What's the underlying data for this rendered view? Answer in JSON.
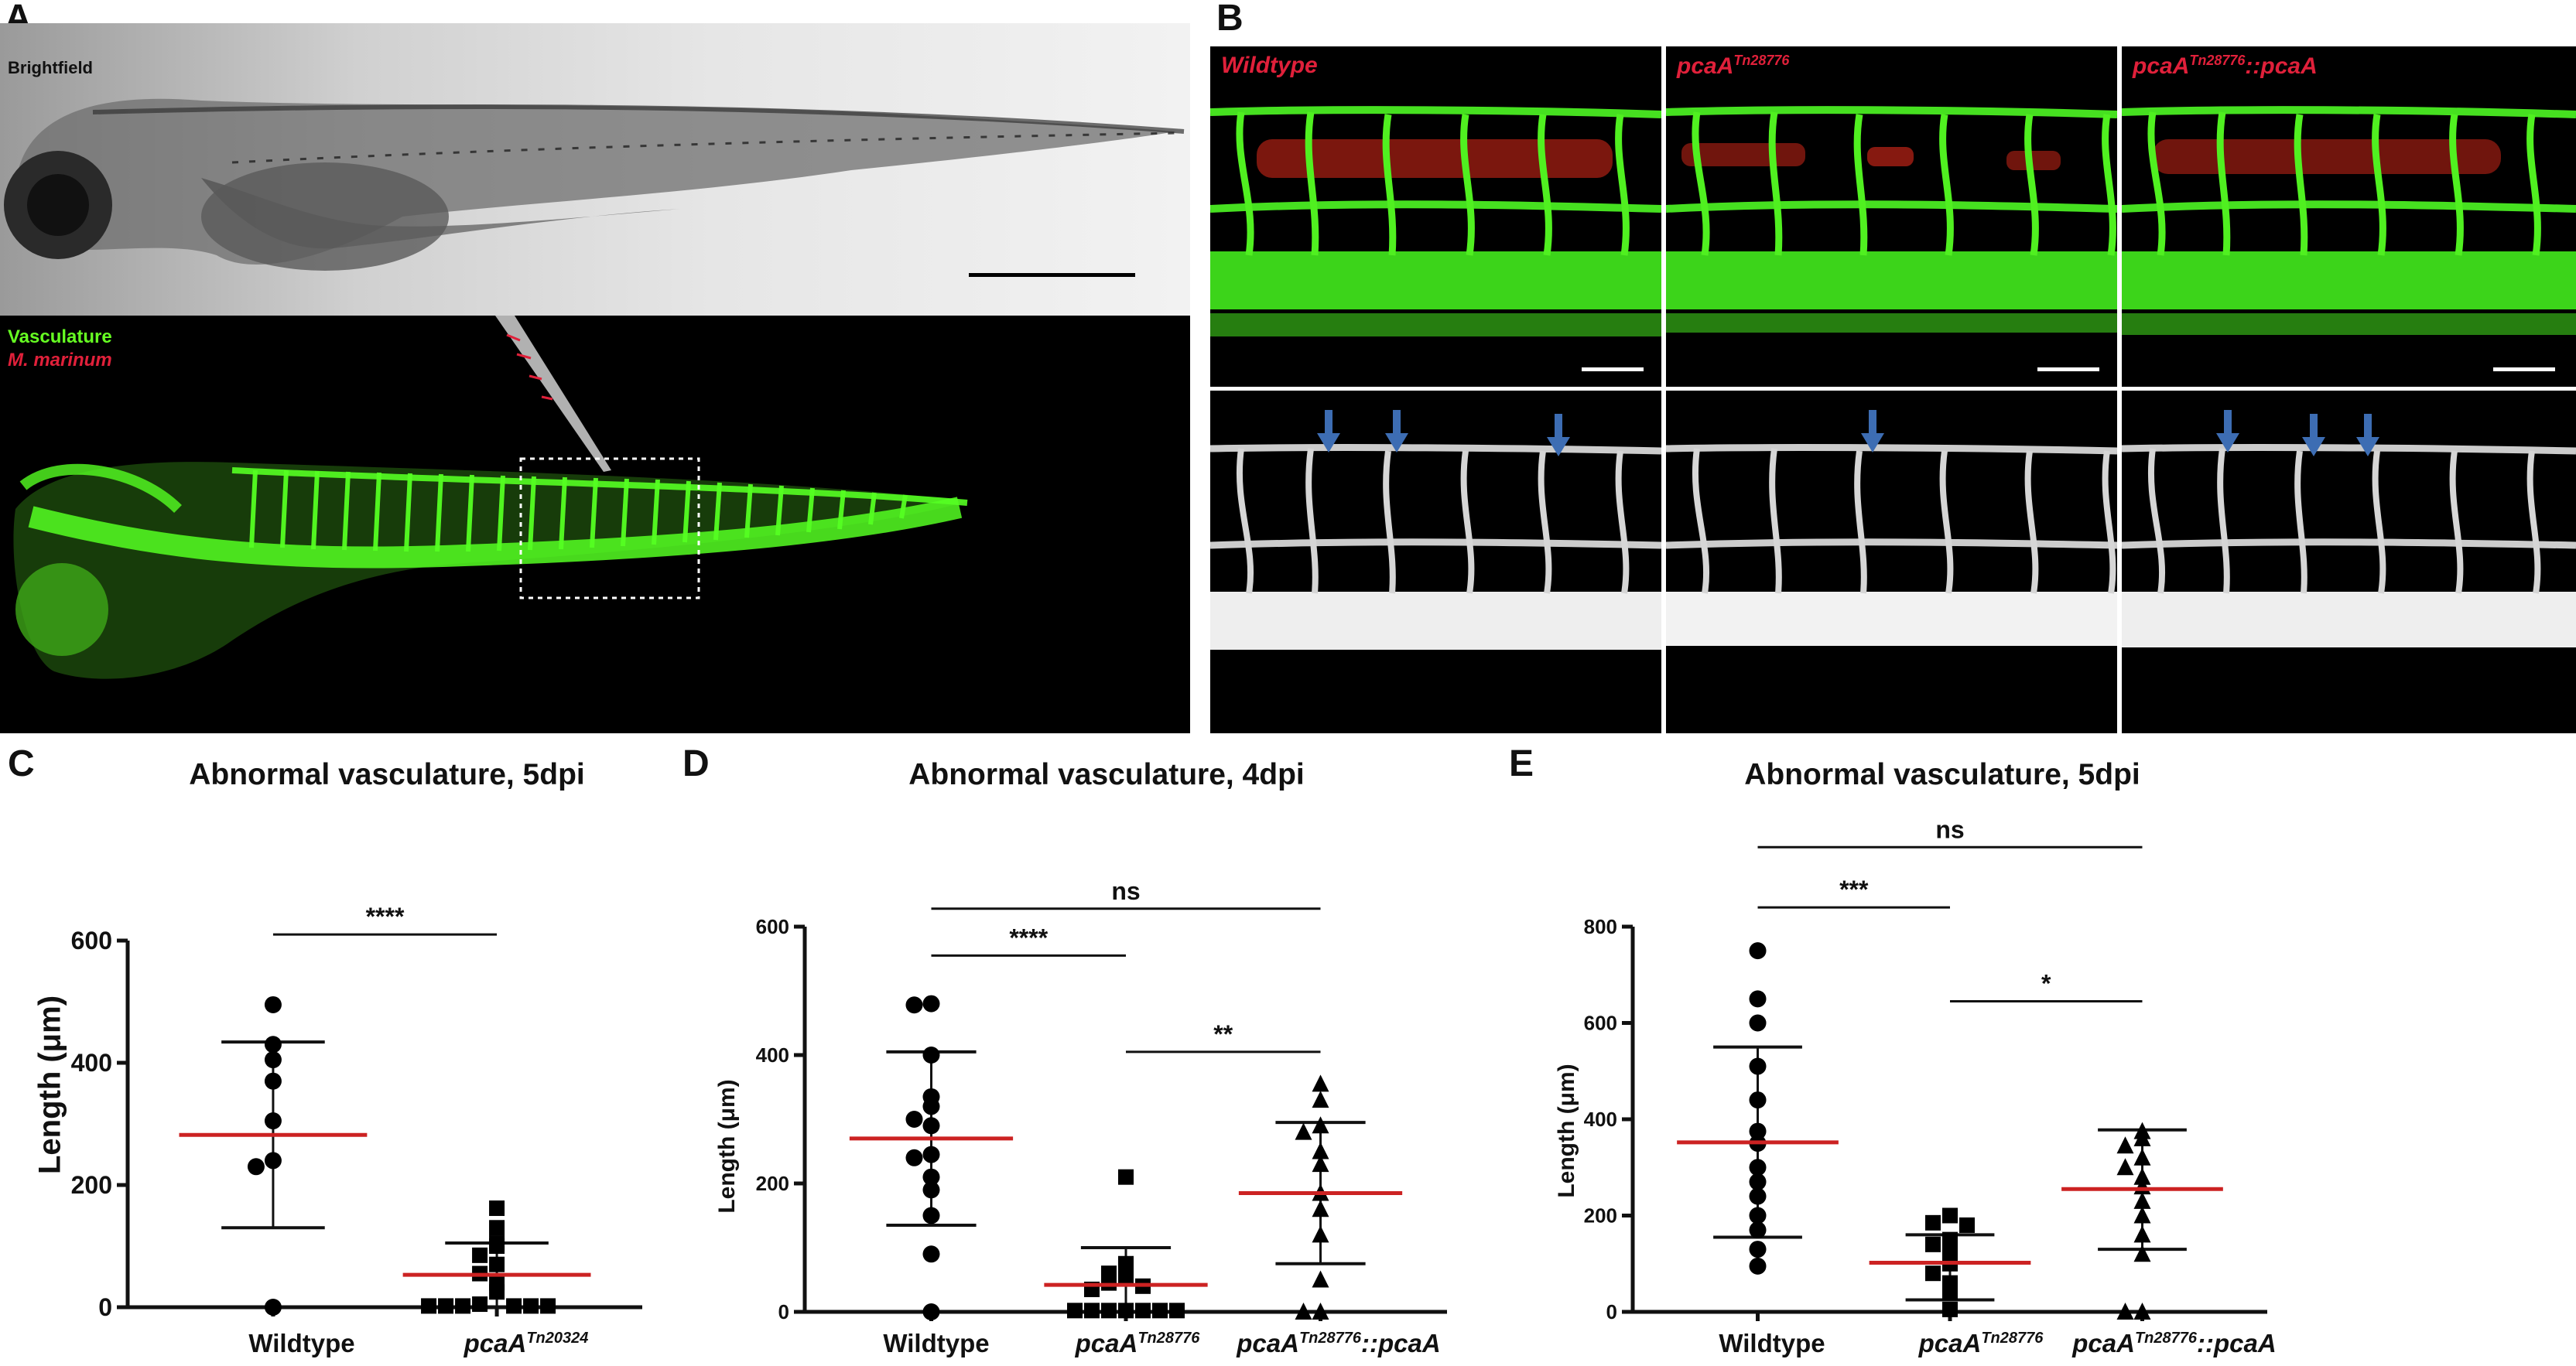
{
  "panels": {
    "A": {
      "label": "A",
      "brightfield_label": "Brightfield",
      "vasculature_label": "Vasculature",
      "bacteria_label": "M. marinum"
    },
    "B": {
      "label": "B",
      "columns": [
        {
          "base": "Wildtype",
          "sup": "",
          "suffix": ""
        },
        {
          "base": "pcaA",
          "sup": "Tn28776",
          "suffix": ""
        },
        {
          "base": "pcaA",
          "sup": "Tn28776",
          "suffix": "::pcaA"
        }
      ]
    },
    "C": {
      "label": "C",
      "title": "Abnormal vasculature, 5dpi",
      "ylabel": "Length (μm)"
    },
    "D": {
      "label": "D",
      "title": "Abnormal vasculature, 4dpi",
      "ylabel": "Length (μm)"
    },
    "E": {
      "label": "E",
      "title": "Abnormal vasculature, 5dpi",
      "ylabel": "Length (μm)"
    }
  },
  "colors": {
    "mean_line": "#cc2222",
    "vasculature": "#44ff22",
    "bacteria": "#e0203a",
    "arrow": "#3d6db3"
  },
  "chart_data": [
    {
      "panel": "C",
      "type": "scatter",
      "title": "Abnormal vasculature, 5dpi",
      "ylabel": "Length (μm)",
      "ylim": [
        0,
        600
      ],
      "yticks": [
        0,
        200,
        400,
        600
      ],
      "categories": [
        {
          "base": "Wildtype",
          "sup": ""
        },
        {
          "base": "pcaA",
          "sup": "Tn20324"
        }
      ],
      "groups": [
        {
          "marker": "circle",
          "mean": 282,
          "sd_low": 130,
          "sd_high": 434,
          "values": [
            495,
            430,
            405,
            370,
            305,
            240,
            230,
            0
          ]
        },
        {
          "marker": "square",
          "mean": 53,
          "sd_low": 0,
          "sd_high": 105,
          "values": [
            162,
            130,
            105,
            100,
            85,
            70,
            55,
            40,
            25,
            5,
            2,
            2,
            2,
            2,
            2,
            2
          ]
        }
      ],
      "comparisons": [
        {
          "from": 0,
          "to": 1,
          "y": 610,
          "label": "****"
        }
      ]
    },
    {
      "panel": "D",
      "type": "scatter",
      "title": "Abnormal vasculature, 4dpi",
      "ylabel": "Length (μm)",
      "ylim": [
        0,
        600
      ],
      "yticks": [
        0,
        200,
        400,
        600
      ],
      "categories": [
        {
          "base": "Wildtype",
          "sup": ""
        },
        {
          "base": "pcaA",
          "sup": "Tn28776"
        },
        {
          "base": "pcaA",
          "sup": "Tn28776",
          "suffix": "::pcaA"
        }
      ],
      "groups": [
        {
          "marker": "circle",
          "mean": 270,
          "sd_low": 135,
          "sd_high": 405,
          "values": [
            480,
            478,
            400,
            335,
            320,
            300,
            290,
            245,
            240,
            210,
            190,
            150,
            90,
            0
          ]
        },
        {
          "marker": "square",
          "mean": 42,
          "sd_low": 0,
          "sd_high": 100,
          "values": [
            210,
            75,
            60,
            55,
            45,
            40,
            35,
            2,
            2,
            2,
            2,
            2,
            2,
            2
          ]
        },
        {
          "marker": "triangle",
          "mean": 185,
          "sd_low": 75,
          "sd_high": 295,
          "values": [
            355,
            330,
            290,
            280,
            250,
            230,
            185,
            160,
            120,
            50,
            0,
            0
          ]
        }
      ],
      "comparisons": [
        {
          "from": 0,
          "to": 2,
          "y": 628,
          "label": "ns"
        },
        {
          "from": 0,
          "to": 1,
          "y": 555,
          "label": "****"
        },
        {
          "from": 1,
          "to": 2,
          "y": 405,
          "label": "**"
        }
      ]
    },
    {
      "panel": "E",
      "type": "scatter",
      "title": "Abnormal vasculature, 5dpi",
      "ylabel": "Length (μm)",
      "ylim": [
        0,
        800
      ],
      "yticks": [
        0,
        200,
        400,
        600,
        800
      ],
      "categories": [
        {
          "base": "Wildtype",
          "sup": ""
        },
        {
          "base": "pcaA",
          "sup": "Tn28776"
        },
        {
          "base": "pcaA",
          "sup": "Tn28776",
          "suffix": "::pcaA"
        }
      ],
      "groups": [
        {
          "marker": "circle",
          "mean": 352,
          "sd_low": 155,
          "sd_high": 550,
          "values": [
            750,
            650,
            600,
            510,
            440,
            375,
            350,
            300,
            270,
            240,
            200,
            170,
            130,
            95
          ]
        },
        {
          "marker": "square",
          "mean": 102,
          "sd_low": 25,
          "sd_high": 160,
          "values": [
            200,
            185,
            180,
            150,
            140,
            120,
            100,
            80,
            60,
            40,
            5
          ]
        },
        {
          "marker": "triangle",
          "mean": 255,
          "sd_low": 130,
          "sd_high": 378,
          "values": [
            375,
            360,
            345,
            320,
            300,
            280,
            260,
            230,
            200,
            160,
            120,
            0,
            0
          ]
        }
      ],
      "comparisons": [
        {
          "from": 0,
          "to": 2,
          "y": 965,
          "label": "ns"
        },
        {
          "from": 0,
          "to": 1,
          "y": 840,
          "label": "***"
        },
        {
          "from": 1,
          "to": 2,
          "y": 645,
          "label": "*"
        }
      ]
    }
  ]
}
